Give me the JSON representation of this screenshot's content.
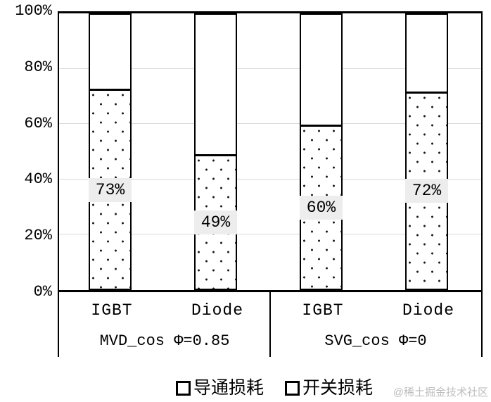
{
  "chart_data": {
    "type": "bar",
    "stacked": true,
    "title": "",
    "xlabel": "",
    "ylabel": "",
    "ylim": [
      0,
      100
    ],
    "grid": true,
    "legend_position": "bottom",
    "y_ticks": [
      "100%",
      "80%",
      "60%",
      "40%",
      "20%",
      "0%"
    ],
    "categories": [
      "IGBT",
      "Diode",
      "IGBT",
      "Diode"
    ],
    "groups": [
      {
        "label": "MVD_cos Φ=0.85",
        "categories": [
          "IGBT",
          "Diode"
        ]
      },
      {
        "label": "SVG_cos Φ=0",
        "categories": [
          "IGBT",
          "Diode"
        ]
      }
    ],
    "series": [
      {
        "name": "导通损耗",
        "fill": "dotted",
        "values": [
          73,
          49,
          60,
          72
        ]
      },
      {
        "name": "开关损耗",
        "fill": "white",
        "values": [
          27,
          51,
          40,
          28
        ]
      }
    ],
    "bar_labels": [
      "73%",
      "49%",
      "60%",
      "72%"
    ]
  },
  "watermark": "@稀土掘金技术社区",
  "colors": {
    "line": "#000000",
    "gridline": "#d9d9d9",
    "bar_fill": "#ffffff",
    "value_label_bg": "#ededed",
    "watermark": "#bdbdbd",
    "background": "#ffffff"
  }
}
